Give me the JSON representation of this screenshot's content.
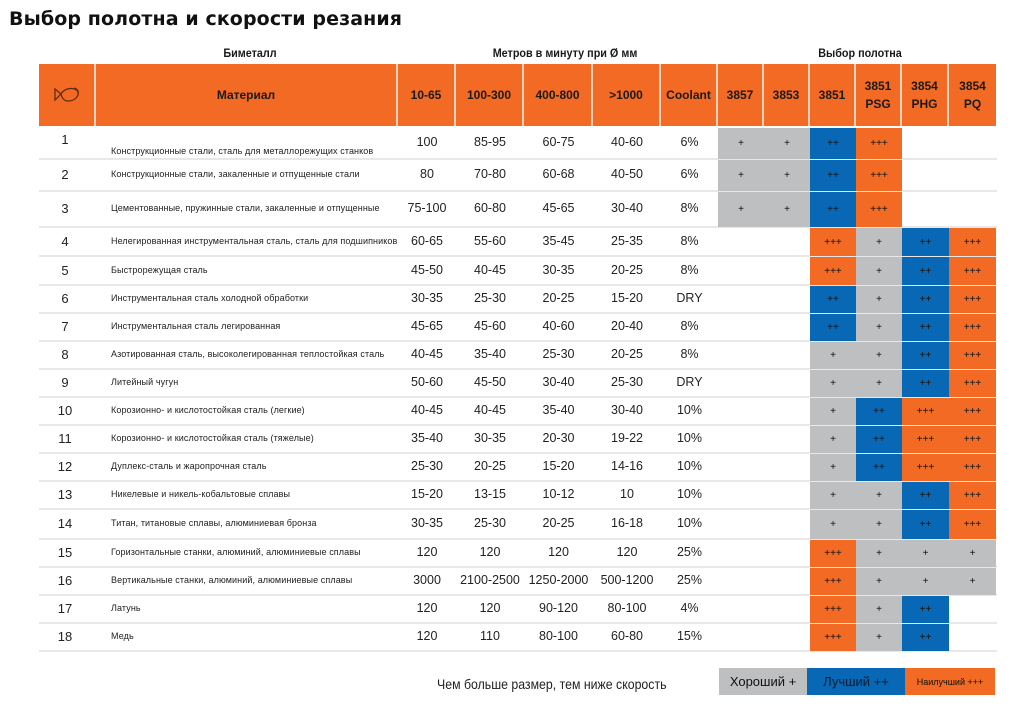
{
  "title": "Выбор полотна и скорости резания",
  "group_headers": {
    "bimetal": "Биметалл",
    "speed": "Метров в минуту при Ø мм",
    "blade": "Выбор полотна"
  },
  "columns": {
    "icon": "fish-logo-icon",
    "material": "Материал",
    "d1": "10-65",
    "d2": "100-300",
    "d3": "400-800",
    "d4": ">1000",
    "coolant": "Coolant",
    "b1": "3857",
    "b2": "3853",
    "b3": "3851",
    "b4_l1": "3851",
    "b4_l2": "PSG",
    "b5_l1": "3854",
    "b5_l2": "PHG",
    "b6_l1": "3854",
    "b6_l2": "PQ"
  },
  "colors": {
    "header": "#f26a24",
    "good": "#bebfc1",
    "better": "#0868b5",
    "best": "#f26a24"
  },
  "rows": [
    {
      "n": "1",
      "material": "Конструкционные стали, сталь для металлорежущих станков",
      "d1": "100",
      "d2": "85-95",
      "d3": "60-75",
      "d4": "40-60",
      "coolant": "6%",
      "blades": [
        "+",
        "+",
        "++",
        "+++",
        "",
        ""
      ]
    },
    {
      "n": "2",
      "material": "Конструкционные стали, закаленные и отпущенные стали",
      "d1": "80",
      "d2": "70-80",
      "d3": "60-68",
      "d4": "40-50",
      "coolant": "6%",
      "blades": [
        "+",
        "+",
        "++",
        "+++",
        "",
        ""
      ]
    },
    {
      "n": "3",
      "material": "Цементованные, пружинные стали, закаленные и отпущенные",
      "d1": "75-100",
      "d2": "60-80",
      "d3": "45-65",
      "d4": "30-40",
      "coolant": "8%",
      "blades": [
        "+",
        "+",
        "++",
        "+++",
        "",
        ""
      ]
    },
    {
      "n": "4",
      "material": "Нелегированная инструментальная сталь, сталь для подшипников",
      "d1": "60-65",
      "d2": "55-60",
      "d3": "35-45",
      "d4": "25-35",
      "coolant": "8%",
      "blades": [
        "",
        "",
        "+++",
        "+",
        "++",
        "+++"
      ]
    },
    {
      "n": "5",
      "material": "Быстрорежущая сталь",
      "d1": "45-50",
      "d2": "40-45",
      "d3": "30-35",
      "d4": "20-25",
      "coolant": "8%",
      "blades": [
        "",
        "",
        "+++",
        "+",
        "++",
        "+++"
      ]
    },
    {
      "n": "6",
      "material": "Инструментальная сталь холодной обработки",
      "d1": "30-35",
      "d2": "25-30",
      "d3": "20-25",
      "d4": "15-20",
      "coolant": "DRY",
      "blades": [
        "",
        "",
        "++",
        "+",
        "++",
        "+++"
      ]
    },
    {
      "n": "7",
      "material": "Инструментальная сталь легированная",
      "d1": "45-65",
      "d2": "45-60",
      "d3": "40-60",
      "d4": "20-40",
      "coolant": "8%",
      "blades": [
        "",
        "",
        "++",
        "+",
        "++",
        "+++"
      ]
    },
    {
      "n": "8",
      "material": "Азотированная сталь, высоколегированная теплостойкая сталь",
      "d1": "40-45",
      "d2": "35-40",
      "d3": "25-30",
      "d4": "20-25",
      "coolant": "8%",
      "blades": [
        "",
        "",
        "+",
        "+",
        "++",
        "+++"
      ]
    },
    {
      "n": "9",
      "material": "Литейный чугун",
      "d1": "50-60",
      "d2": "45-50",
      "d3": "30-40",
      "d4": "25-30",
      "coolant": "DRY",
      "blades": [
        "",
        "",
        "+",
        "+",
        "++",
        "+++"
      ]
    },
    {
      "n": "10",
      "material": "Корозионно- и кислотостойкая сталь (легкие)",
      "d1": "40-45",
      "d2": "40-45",
      "d3": "35-40",
      "d4": "30-40",
      "coolant": "10%",
      "blades": [
        "",
        "",
        "+",
        "++",
        "+++",
        "+++"
      ]
    },
    {
      "n": "11",
      "material": "Корозионно- и кислотостойкая сталь (тяжелые)",
      "d1": "35-40",
      "d2": "30-35",
      "d3": "20-30",
      "d4": "19-22",
      "coolant": "10%",
      "blades": [
        "",
        "",
        "+",
        "++",
        "+++",
        "+++"
      ]
    },
    {
      "n": "12",
      "material": "Дуплекс-сталь и жаропрочная сталь",
      "d1": "25-30",
      "d2": "20-25",
      "d3": "15-20",
      "d4": "14-16",
      "coolant": "10%",
      "blades": [
        "",
        "",
        "+",
        "++",
        "+++",
        "+++"
      ]
    },
    {
      "n": "13",
      "material": "Никелевые и никель-кобальтовые сплавы",
      "d1": "15-20",
      "d2": "13-15",
      "d3": "10-12",
      "d4": "10",
      "coolant": "10%",
      "blades": [
        "",
        "",
        "+",
        "+",
        "++",
        "+++"
      ]
    },
    {
      "n": "14",
      "material": "Титан, титановые сплавы, алюминиевая бронза",
      "d1": "30-35",
      "d2": "25-30",
      "d3": "20-25",
      "d4": "16-18",
      "coolant": "10%",
      "blades": [
        "",
        "",
        "+",
        "+",
        "++",
        "+++"
      ]
    },
    {
      "n": "15",
      "material": "Горизонтальные станки, алюминий, алюминиевые сплавы",
      "d1": "120",
      "d2": "120",
      "d3": "120",
      "d4": "120",
      "coolant": "25%",
      "blades": [
        "",
        "",
        "+++",
        "+",
        "+",
        "+"
      ]
    },
    {
      "n": "16",
      "material": "Вертикальные станки, алюминий, алюминиевые сплавы",
      "d1": "3000",
      "d2": "2100-2500",
      "d3": "1250-2000",
      "d4": "500-1200",
      "coolant": "25%",
      "blades": [
        "",
        "",
        "+++",
        "+",
        "+",
        "+"
      ]
    },
    {
      "n": "17",
      "material": "Латунь",
      "d1": "120",
      "d2": "120",
      "d3": "90-120",
      "d4": "80-100",
      "coolant": "4%",
      "blades": [
        "",
        "",
        "+++",
        "+",
        "++",
        ""
      ]
    },
    {
      "n": "18",
      "material": "Медь",
      "d1": "120",
      "d2": "110",
      "d3": "80-100",
      "d4": "60-80",
      "coolant": "15%",
      "blades": [
        "",
        "",
        "+++",
        "+",
        "++",
        ""
      ]
    }
  ],
  "footer": {
    "note": "Чем больше размер, тем ниже скорость",
    "legend_good": "Хороший +",
    "legend_better": "Лучший ++",
    "legend_best": "Наилучший +++"
  }
}
